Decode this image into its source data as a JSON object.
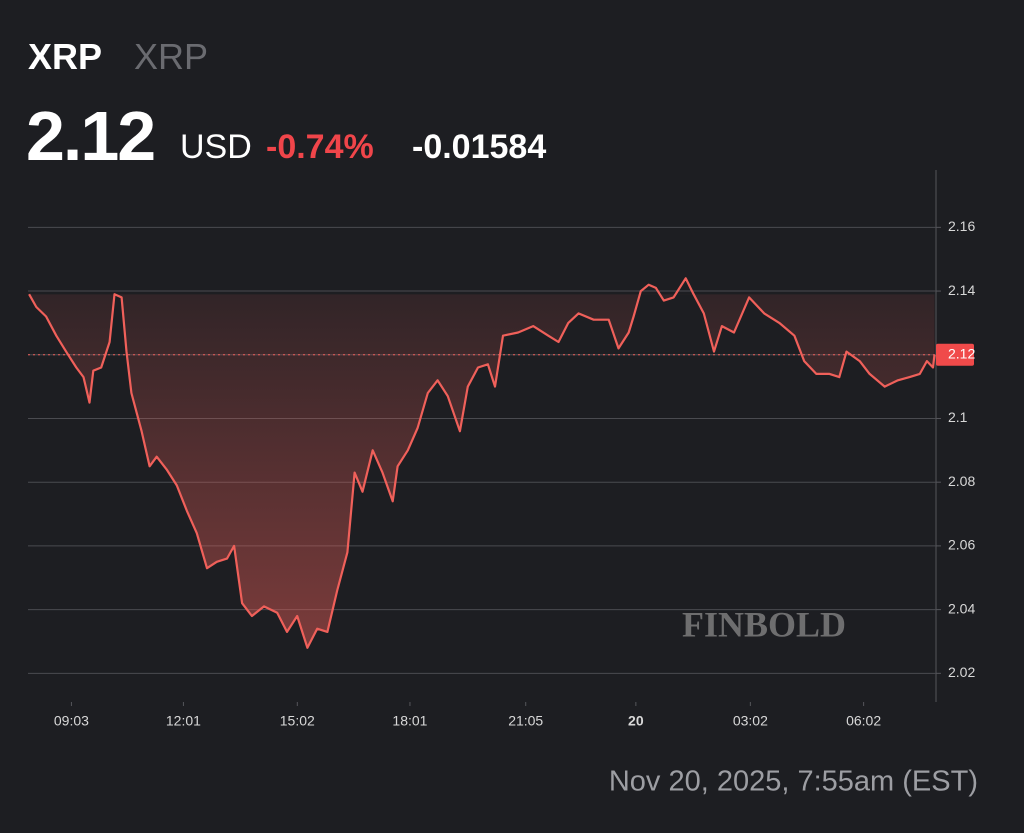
{
  "header": {
    "symbol": "XRP",
    "name": "XRP",
    "price": "2.12",
    "currency": "USD",
    "change_pct": "-0.74%",
    "change": "-0.01584"
  },
  "timestamp": "Nov 20, 2025, 7:55am (EST)",
  "watermark": "FINBOLD",
  "chart_data": {
    "type": "line",
    "x": [
      7.93,
      8.12,
      8.38,
      8.65,
      8.91,
      9.18,
      9.37,
      9.53,
      9.63,
      9.84,
      10.06,
      10.19,
      10.38,
      10.51,
      10.64,
      10.91,
      11.12,
      11.31,
      11.57,
      11.84,
      12.11,
      12.37,
      12.64,
      12.9,
      13.17,
      13.36,
      13.57,
      13.83,
      14.15,
      14.5,
      14.76,
      15.03,
      15.3,
      15.56,
      15.83,
      16.09,
      16.36,
      16.55,
      16.76,
      17.03,
      17.29,
      17.56,
      17.69,
      17.96,
      18.22,
      18.49,
      18.75,
      19.02,
      19.34,
      19.55,
      19.82,
      20.08,
      20.27,
      20.48,
      20.88,
      21.28,
      21.68,
      21.95,
      22.21,
      22.48,
      22.88,
      23.28,
      23.54,
      23.81,
      23.94,
      24.13,
      24.34,
      24.53,
      24.74,
      25.0,
      25.32,
      25.53,
      25.8,
      26.07,
      26.28,
      26.6,
      27.0,
      27.4,
      27.8,
      28.2,
      28.46,
      28.78,
      29.13,
      29.39,
      29.58,
      29.93,
      30.19,
      30.59,
      30.94,
      31.25,
      31.52,
      31.71,
      31.87,
      31.91
    ],
    "series": [
      {
        "color": "#f0605a",
        "values": [
          2.139,
          2.135,
          2.132,
          2.126,
          2.121,
          2.116,
          2.113,
          2.105,
          2.115,
          2.116,
          2.124,
          2.139,
          2.138,
          2.121,
          2.108,
          2.096,
          2.085,
          2.088,
          2.084,
          2.079,
          2.071,
          2.064,
          2.053,
          2.055,
          2.056,
          2.06,
          2.042,
          2.038,
          2.041,
          2.039,
          2.033,
          2.038,
          2.028,
          2.034,
          2.033,
          2.046,
          2.058,
          2.083,
          2.077,
          2.09,
          2.083,
          2.074,
          2.085,
          2.09,
          2.097,
          2.108,
          2.112,
          2.107,
          2.096,
          2.11,
          2.116,
          2.117,
          2.11,
          2.126,
          2.127,
          2.129,
          2.126,
          2.124,
          2.13,
          2.133,
          2.131,
          2.131,
          2.122,
          2.127,
          2.132,
          2.14,
          2.142,
          2.141,
          2.137,
          2.138,
          2.144,
          2.139,
          2.133,
          2.121,
          2.129,
          2.127,
          2.138,
          2.133,
          2.13,
          2.126,
          2.118,
          2.114,
          2.114,
          2.113,
          2.121,
          2.118,
          2.114,
          2.11,
          2.112,
          2.113,
          2.114,
          2.118,
          2.116,
          2.12
        ]
      }
    ],
    "last_value": 2.12,
    "xlim": [
      7.9,
      31.95
    ],
    "xticks": [
      {
        "value": 9.05,
        "label": "09:03"
      },
      {
        "value": 12.0167,
        "label": "12:01"
      },
      {
        "value": 15.033,
        "label": "15:02"
      },
      {
        "value": 18.0167,
        "label": "18:01"
      },
      {
        "value": 21.083,
        "label": "21:05"
      },
      {
        "value": 24,
        "label": "20"
      },
      {
        "value": 27.033,
        "label": "03:02"
      },
      {
        "value": 30.033,
        "label": "06:02"
      }
    ],
    "ylim": [
      2.011,
      2.178
    ],
    "yticks": [
      2.02,
      2.04,
      2.06,
      2.08,
      2.1,
      2.12,
      2.14,
      2.16
    ],
    "grid": true
  }
}
